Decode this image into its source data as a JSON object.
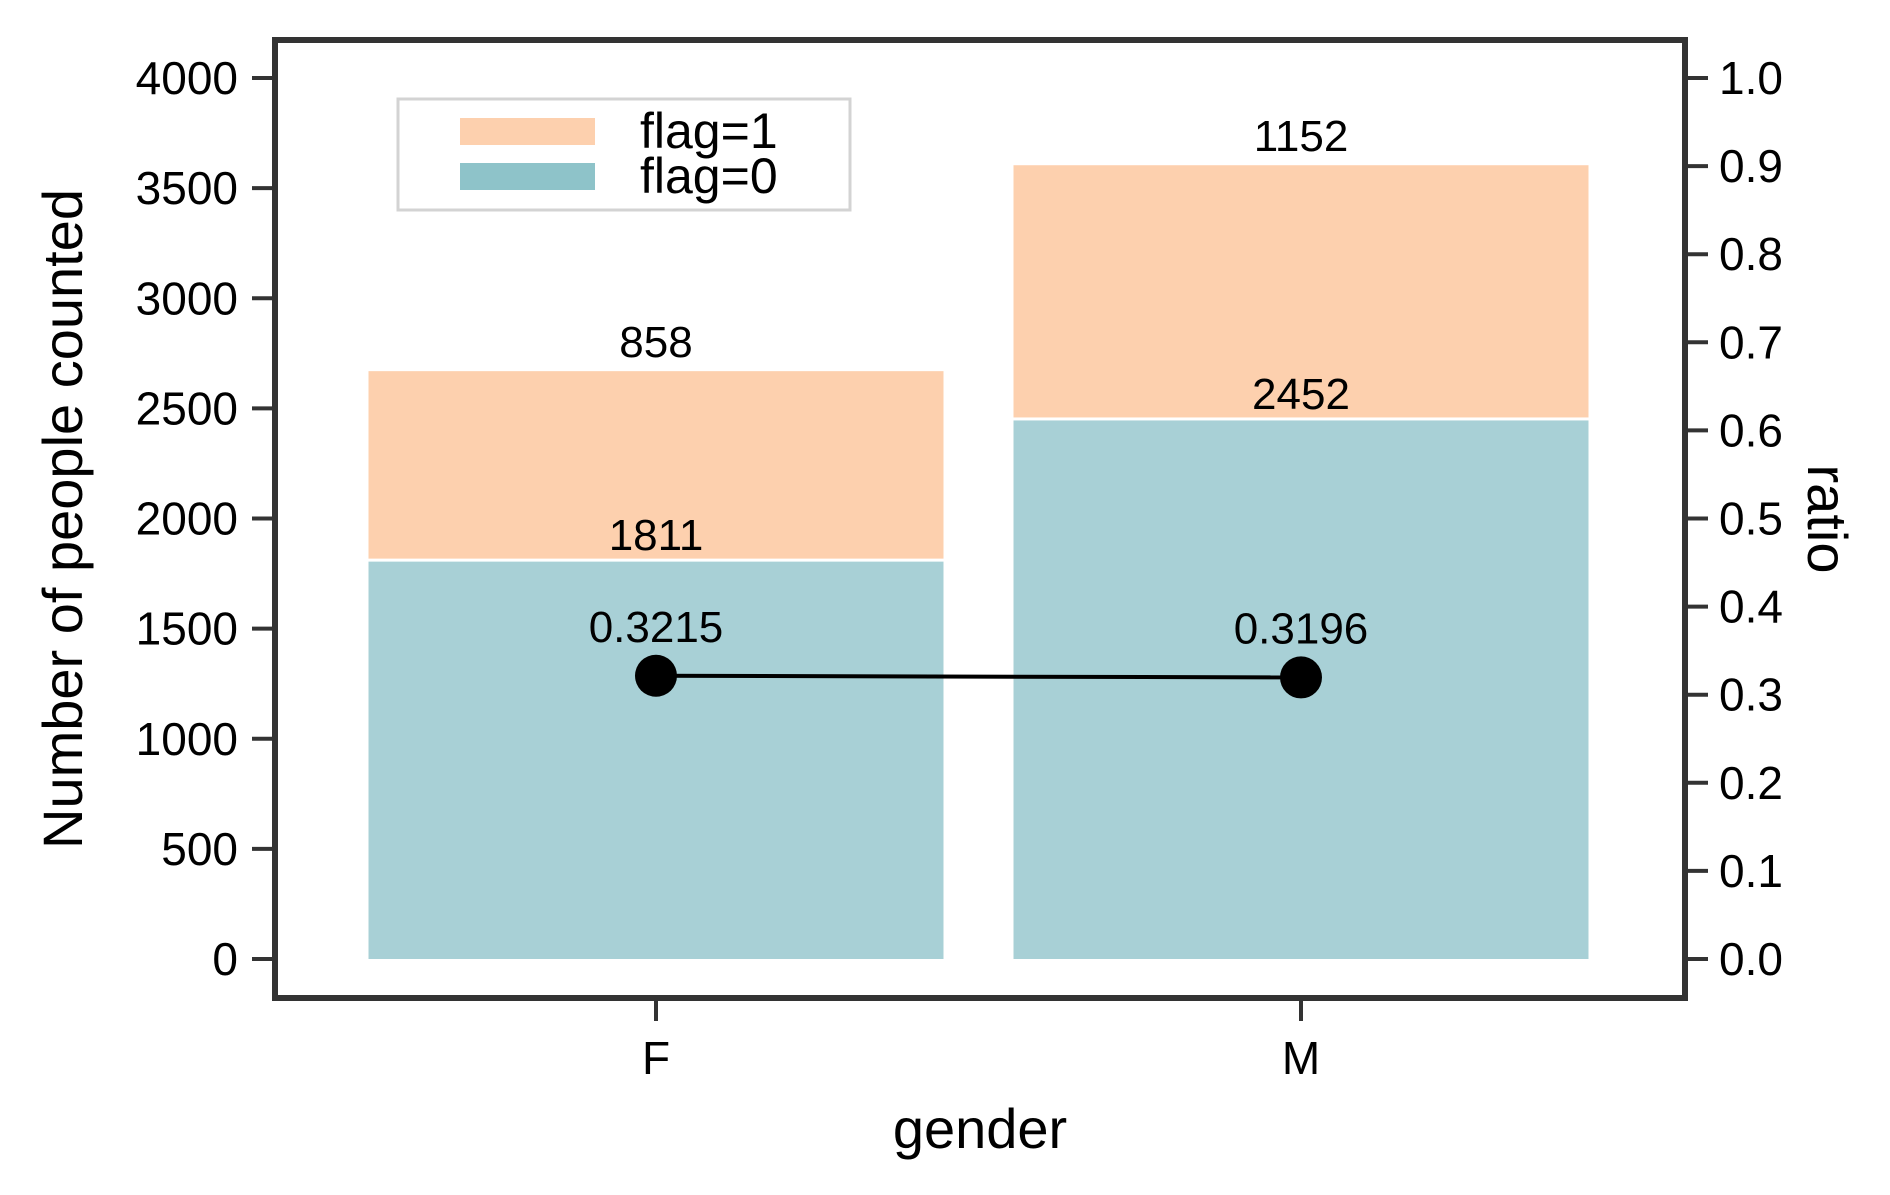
{
  "chart_data": {
    "type": "bar",
    "stacked": true,
    "categories": [
      "F",
      "M"
    ],
    "series": [
      {
        "name": "flag=0",
        "values": [
          1811,
          2452
        ],
        "color": "#a8d0d6"
      },
      {
        "name": "flag=1",
        "values": [
          858,
          1152
        ],
        "color": "#fdd0ae"
      }
    ],
    "line_series": {
      "values": [
        0.3215,
        0.3196
      ],
      "labels": [
        "0.3215",
        "0.3196"
      ],
      "color": "#000000",
      "axis": "right"
    },
    "bar_labels": {
      "flag0": [
        "1811",
        "2452"
      ],
      "flag1": [
        "858",
        "1152"
      ]
    },
    "xlabel": "gender",
    "ylabel": "Number of people counted",
    "y2label": "ratio",
    "ylim": [
      0,
      4000
    ],
    "y2lim": [
      0,
      1.0
    ],
    "yticks": [
      "0",
      "500",
      "1000",
      "1500",
      "2000",
      "2500",
      "3000",
      "3500",
      "4000"
    ],
    "y2ticks": [
      "0.0",
      "0.1",
      "0.2",
      "0.3",
      "0.4",
      "0.5",
      "0.6",
      "0.7",
      "0.8",
      "0.9",
      "1.0"
    ],
    "legend": {
      "placement": "upper-left",
      "entries": [
        {
          "label": "flag=1",
          "color": "#fdd0ae"
        },
        {
          "label": "flag=0",
          "color": "#8ec3c9"
        }
      ]
    },
    "grid": false,
    "frame_color": "#333333"
  }
}
